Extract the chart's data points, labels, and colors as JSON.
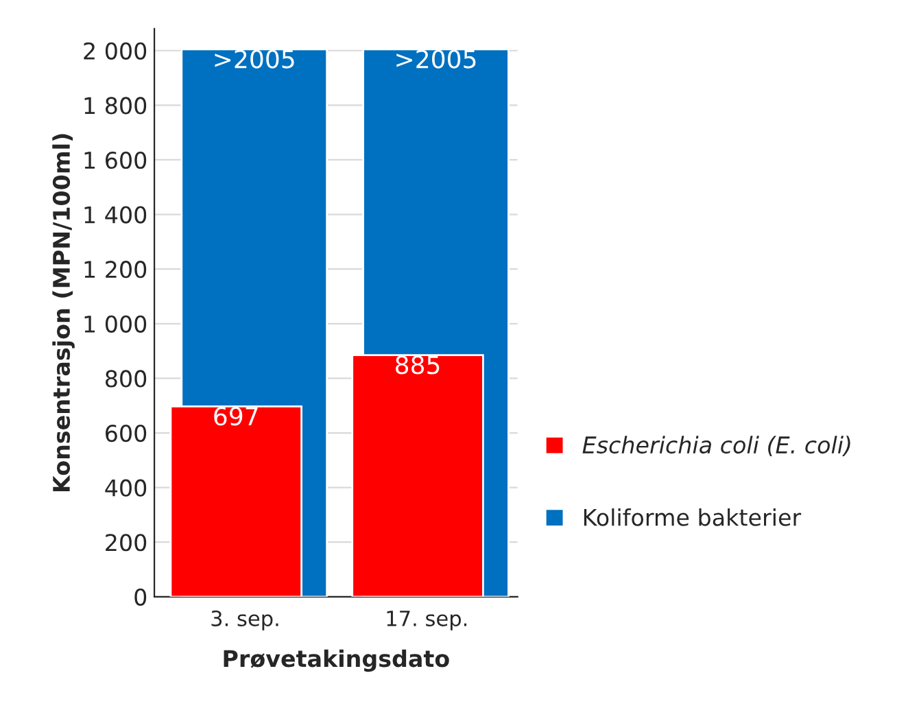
{
  "chart_data": {
    "type": "bar",
    "xlabel": "Prøvetakingsdato",
    "ylabel": "Konsentrasjon (MPN/100ml)",
    "categories": [
      "3. sep.",
      "17. sep."
    ],
    "series": [
      {
        "name": "Escherichia coli (E. coli)",
        "color": "#ff0000",
        "values": [
          697,
          885
        ],
        "value_labels": [
          "697",
          "885"
        ]
      },
      {
        "name": "Koliforme bakterier",
        "color": "#0070c0",
        "values": [
          2005,
          2005
        ],
        "value_labels": [
          ">2005",
          ">2005"
        ]
      }
    ],
    "ylim": [
      0,
      2080
    ],
    "yticks": [
      0,
      200,
      400,
      600,
      800,
      {
        "value": 1000,
        "label": "1 000"
      },
      {
        "value": 1200,
        "label": "1 200"
      },
      {
        "value": 1400,
        "label": "1 400"
      },
      {
        "value": 1600,
        "label": "1 600"
      },
      {
        "value": 1800,
        "label": "1 800"
      },
      {
        "value": 2000,
        "label": "2 000"
      }
    ],
    "grid": "y",
    "legend": "right"
  }
}
